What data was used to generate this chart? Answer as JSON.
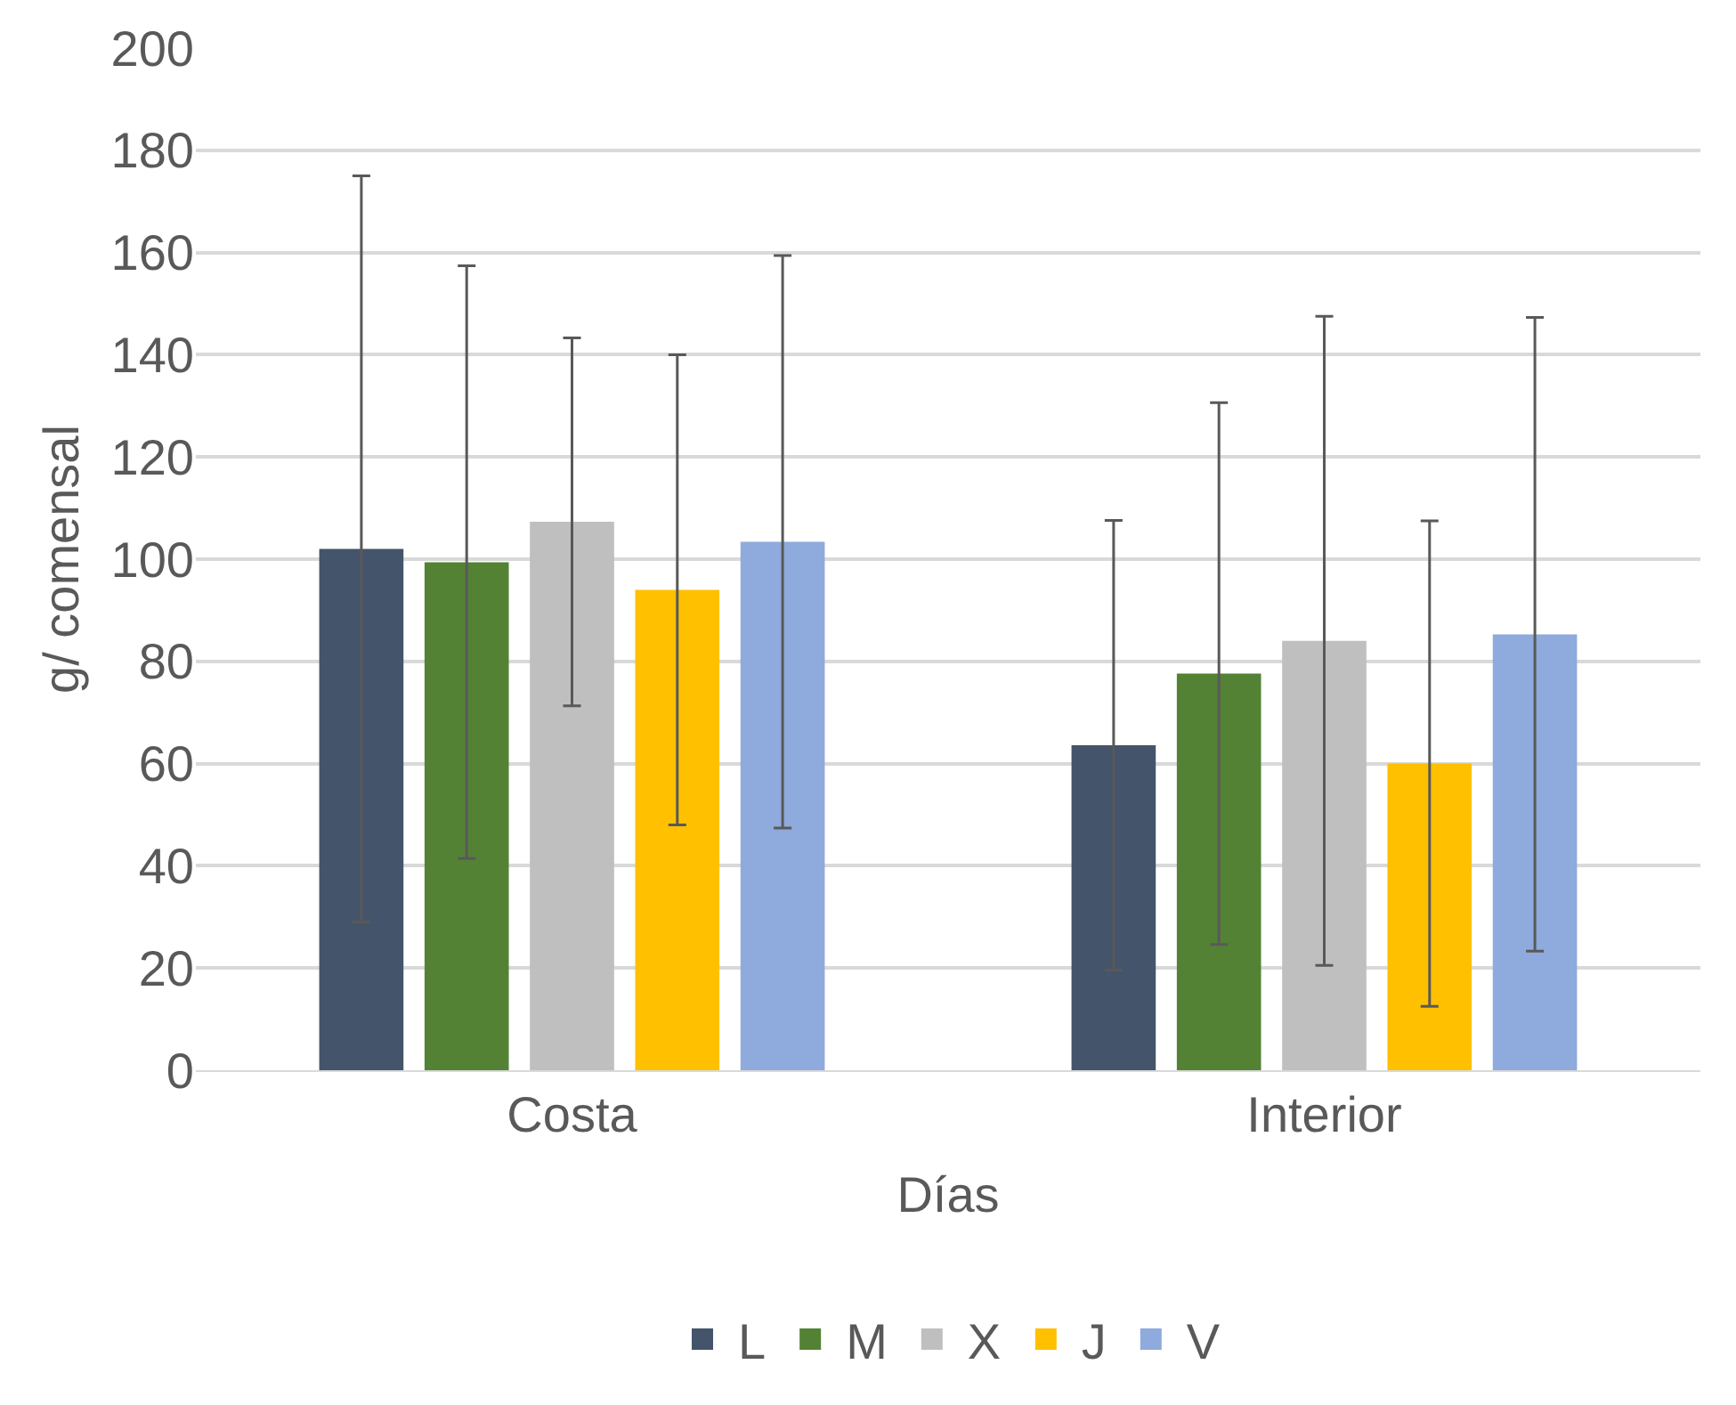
{
  "chart_data": {
    "type": "bar",
    "xlabel": "Días",
    "ylabel": "g/ comensal",
    "categories": [
      "Costa",
      "Interior"
    ],
    "series": [
      {
        "name": "L",
        "color": "#44546a",
        "values": [
          102,
          63.6
        ],
        "errors": [
          73,
          44
        ]
      },
      {
        "name": "M",
        "color": "#548235",
        "values": [
          99.4,
          77.6
        ],
        "errors": [
          58,
          53
        ]
      },
      {
        "name": "X",
        "color": "#bfbfbf",
        "values": [
          107.3,
          84
        ],
        "errors": [
          36,
          63.5
        ]
      },
      {
        "name": "J",
        "color": "#ffc000",
        "values": [
          94,
          60
        ],
        "errors": [
          46,
          47.5
        ]
      },
      {
        "name": "V",
        "color": "#8faadc",
        "values": [
          103.4,
          85.3
        ],
        "errors": [
          56,
          62
        ]
      }
    ],
    "ylim": [
      0,
      200
    ],
    "yticks": [
      0,
      20,
      40,
      60,
      80,
      100,
      120,
      140,
      160,
      180,
      200
    ],
    "grid": "y",
    "legend": "bottom"
  }
}
